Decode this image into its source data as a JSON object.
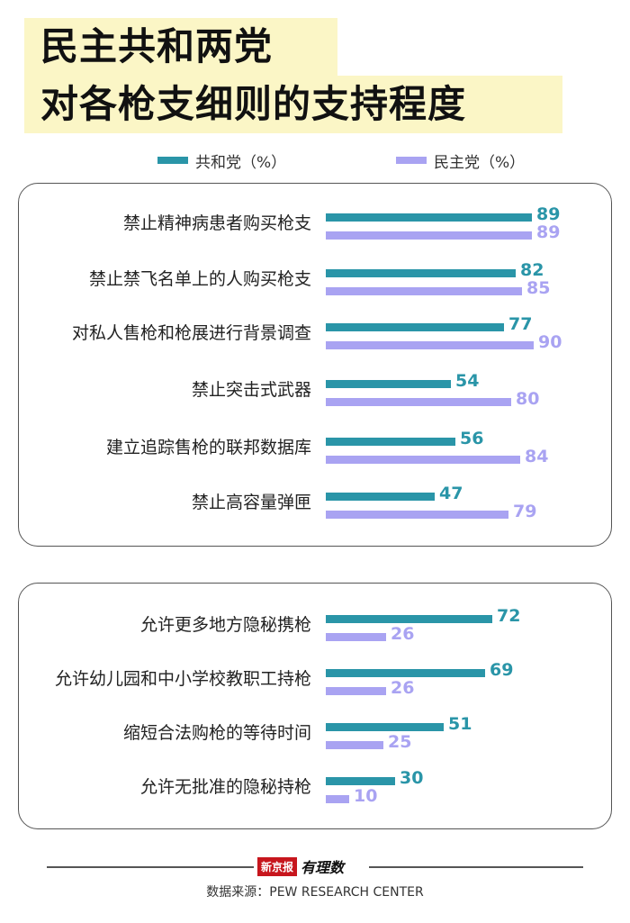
{
  "title": {
    "line1": "民主共和两党",
    "line2": "对各枪支细则的支持程度"
  },
  "legend": {
    "republican": "共和党（%）",
    "democrat": "民主党（%）"
  },
  "colors": {
    "republican": "#2a95a8",
    "democrat": "#a9a3f2",
    "title_background": "#fbf6c6"
  },
  "chart_data": [
    {
      "type": "bar",
      "orientation": "horizontal",
      "categories": [
        "禁止精神病患者购买枪支",
        "禁止禁飞名单上的人购买枪支",
        "对私人售枪和枪展进行背景调查",
        "禁止突击式武器",
        "建立追踪售枪的联邦数据库",
        "禁止高容量弹匣"
      ],
      "series": [
        {
          "name": "共和党（%）",
          "values": [
            89,
            82,
            77,
            54,
            56,
            47
          ]
        },
        {
          "name": "民主党（%）",
          "values": [
            89,
            85,
            90,
            80,
            84,
            79
          ]
        }
      ],
      "xlim": [
        0,
        100
      ]
    },
    {
      "type": "bar",
      "orientation": "horizontal",
      "categories": [
        "允许更多地方隐秘携枪",
        "允许幼儿园和中小学校教职工持枪",
        "缩短合法购枪的等待时间",
        "允许无批准的隐秘持枪"
      ],
      "series": [
        {
          "name": "共和党（%）",
          "values": [
            72,
            69,
            51,
            30
          ]
        },
        {
          "name": "民主党（%）",
          "values": [
            26,
            26,
            25,
            10
          ]
        }
      ],
      "xlim": [
        0,
        100
      ]
    }
  ],
  "footer": {
    "logo_brand": "新京报",
    "logo_script": "有理数",
    "source": "数据来源：PEW RESEARCH CENTER"
  }
}
